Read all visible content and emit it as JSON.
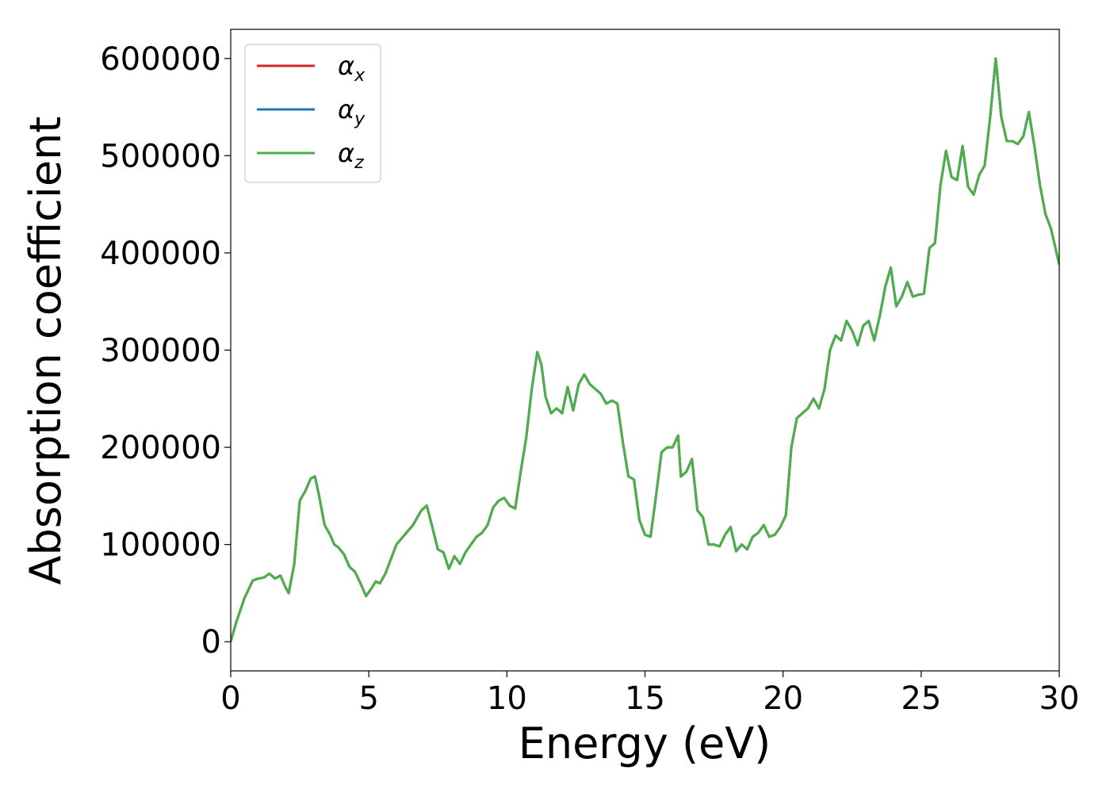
{
  "chart_data": {
    "type": "line",
    "title": "",
    "xlabel": "Energy (eV)",
    "ylabel": "Absorption coefficient",
    "xlim": [
      0,
      30
    ],
    "ylim": [
      -30000,
      630000
    ],
    "xticks": [
      0,
      5,
      10,
      15,
      20,
      25,
      30
    ],
    "xtick_labels": [
      "0",
      "5",
      "10",
      "15",
      "20",
      "25",
      "30"
    ],
    "yticks": [
      0,
      100000,
      200000,
      300000,
      400000,
      500000,
      600000
    ],
    "ytick_labels": [
      "0",
      "100000",
      "200000",
      "300000",
      "400000",
      "500000",
      "600000"
    ],
    "grid": false,
    "legend_position": "top-left",
    "legend": [
      {
        "symbol": "α",
        "sub": "x",
        "color": "#d62728"
      },
      {
        "symbol": "α",
        "sub": "y",
        "color": "#1f77b4"
      },
      {
        "symbol": "α",
        "sub": "z",
        "color": "#4daf4a"
      }
    ],
    "x": [
      0,
      0.2,
      0.5,
      0.8,
      1.0,
      1.2,
      1.4,
      1.6,
      1.8,
      2.0,
      2.1,
      2.3,
      2.5,
      2.7,
      2.9,
      3.05,
      3.2,
      3.4,
      3.6,
      3.75,
      3.9,
      4.1,
      4.3,
      4.5,
      4.7,
      4.9,
      5.1,
      5.25,
      5.4,
      5.6,
      5.8,
      6.0,
      6.3,
      6.6,
      6.9,
      7.1,
      7.3,
      7.5,
      7.7,
      7.9,
      8.1,
      8.3,
      8.5,
      8.7,
      8.9,
      9.1,
      9.3,
      9.5,
      9.7,
      9.9,
      10.1,
      10.3,
      10.5,
      10.7,
      10.9,
      11.1,
      11.25,
      11.4,
      11.6,
      11.8,
      12.0,
      12.2,
      12.4,
      12.6,
      12.8,
      13.0,
      13.2,
      13.4,
      13.6,
      13.8,
      14.0,
      14.2,
      14.4,
      14.6,
      14.8,
      15.0,
      15.2,
      15.4,
      15.6,
      15.8,
      16.0,
      16.2,
      16.3,
      16.5,
      16.7,
      16.9,
      17.1,
      17.3,
      17.5,
      17.7,
      17.9,
      18.1,
      18.3,
      18.5,
      18.7,
      18.9,
      19.1,
      19.3,
      19.5,
      19.7,
      19.9,
      20.1,
      20.3,
      20.5,
      20.7,
      20.9,
      21.1,
      21.3,
      21.5,
      21.7,
      21.9,
      22.1,
      22.3,
      22.5,
      22.7,
      22.9,
      23.1,
      23.3,
      23.5,
      23.7,
      23.9,
      24.1,
      24.3,
      24.5,
      24.7,
      24.9,
      25.1,
      25.3,
      25.5,
      25.7,
      25.9,
      26.1,
      26.3,
      26.5,
      26.7,
      26.9,
      27.1,
      27.3,
      27.5,
      27.7,
      27.9,
      28.1,
      28.3,
      28.5,
      28.7,
      28.9,
      29.1,
      29.3,
      29.5,
      29.7,
      30.0
    ],
    "series": [
      {
        "name": "α_x",
        "color": "#d62728",
        "values": [
          0,
          20000,
          45000,
          63000,
          65000,
          66000,
          70000,
          65000,
          68000,
          55000,
          50000,
          80000,
          145000,
          155000,
          168000,
          170000,
          150000,
          120000,
          110000,
          100000,
          97000,
          90000,
          77000,
          72000,
          60000,
          47000,
          55000,
          62000,
          60000,
          70000,
          85000,
          100000,
          110000,
          120000,
          135000,
          140000,
          118000,
          95000,
          92000,
          75000,
          88000,
          80000,
          92000,
          100000,
          108000,
          112000,
          120000,
          138000,
          145000,
          148000,
          140000,
          137000,
          175000,
          210000,
          260000,
          298000,
          285000,
          252000,
          235000,
          240000,
          235000,
          262000,
          238000,
          265000,
          275000,
          265000,
          260000,
          255000,
          245000,
          248000,
          245000,
          205000,
          170000,
          167000,
          125000,
          110000,
          108000,
          150000,
          195000,
          200000,
          200000,
          212000,
          170000,
          175000,
          188000,
          135000,
          128000,
          100000,
          100000,
          98000,
          110000,
          118000,
          93000,
          100000,
          95000,
          108000,
          112000,
          120000,
          108000,
          110000,
          118000,
          130000,
          200000,
          230000,
          235000,
          240000,
          250000,
          240000,
          260000,
          300000,
          315000,
          310000,
          330000,
          320000,
          305000,
          325000,
          330000,
          310000,
          335000,
          365000,
          385000,
          345000,
          355000,
          370000,
          355000,
          357000,
          358000,
          405000,
          410000,
          470000,
          505000,
          478000,
          475000,
          510000,
          468000,
          460000,
          480000,
          490000,
          540000,
          600000,
          540000,
          515000,
          515000,
          512000,
          520000,
          545000,
          510000,
          470000,
          440000,
          425000,
          388000
        ]
      },
      {
        "name": "α_y",
        "color": "#1f77b4",
        "values": [
          0,
          20000,
          45000,
          63000,
          65000,
          66000,
          70000,
          65000,
          68000,
          55000,
          50000,
          80000,
          145000,
          155000,
          168000,
          170000,
          150000,
          120000,
          110000,
          100000,
          97000,
          90000,
          77000,
          72000,
          60000,
          47000,
          55000,
          62000,
          60000,
          70000,
          85000,
          100000,
          110000,
          120000,
          135000,
          140000,
          118000,
          95000,
          92000,
          75000,
          88000,
          80000,
          92000,
          100000,
          108000,
          112000,
          120000,
          138000,
          145000,
          148000,
          140000,
          137000,
          175000,
          210000,
          260000,
          298000,
          285000,
          252000,
          235000,
          240000,
          235000,
          262000,
          238000,
          265000,
          275000,
          265000,
          260000,
          255000,
          245000,
          248000,
          245000,
          205000,
          170000,
          167000,
          125000,
          110000,
          108000,
          150000,
          195000,
          200000,
          200000,
          212000,
          170000,
          175000,
          188000,
          135000,
          128000,
          100000,
          100000,
          98000,
          110000,
          118000,
          93000,
          100000,
          95000,
          108000,
          112000,
          120000,
          108000,
          110000,
          118000,
          130000,
          200000,
          230000,
          235000,
          240000,
          250000,
          240000,
          260000,
          300000,
          315000,
          310000,
          330000,
          320000,
          305000,
          325000,
          330000,
          310000,
          335000,
          365000,
          385000,
          345000,
          355000,
          370000,
          355000,
          357000,
          358000,
          405000,
          410000,
          470000,
          505000,
          478000,
          475000,
          510000,
          468000,
          460000,
          480000,
          490000,
          540000,
          600000,
          540000,
          515000,
          515000,
          512000,
          520000,
          545000,
          510000,
          470000,
          440000,
          425000,
          388000
        ]
      },
      {
        "name": "α_z",
        "color": "#4daf4a",
        "values": [
          0,
          20000,
          45000,
          63000,
          65000,
          66000,
          70000,
          65000,
          68000,
          55000,
          50000,
          80000,
          145000,
          155000,
          168000,
          170000,
          150000,
          120000,
          110000,
          100000,
          97000,
          90000,
          77000,
          72000,
          60000,
          47000,
          55000,
          62000,
          60000,
          70000,
          85000,
          100000,
          110000,
          120000,
          135000,
          140000,
          118000,
          95000,
          92000,
          75000,
          88000,
          80000,
          92000,
          100000,
          108000,
          112000,
          120000,
          138000,
          145000,
          148000,
          140000,
          137000,
          175000,
          210000,
          260000,
          298000,
          285000,
          252000,
          235000,
          240000,
          235000,
          262000,
          238000,
          265000,
          275000,
          265000,
          260000,
          255000,
          245000,
          248000,
          245000,
          205000,
          170000,
          167000,
          125000,
          110000,
          108000,
          150000,
          195000,
          200000,
          200000,
          212000,
          170000,
          175000,
          188000,
          135000,
          128000,
          100000,
          100000,
          98000,
          110000,
          118000,
          93000,
          100000,
          95000,
          108000,
          112000,
          120000,
          108000,
          110000,
          118000,
          130000,
          200000,
          230000,
          235000,
          240000,
          250000,
          240000,
          260000,
          300000,
          315000,
          310000,
          330000,
          320000,
          305000,
          325000,
          330000,
          310000,
          335000,
          365000,
          385000,
          345000,
          355000,
          370000,
          355000,
          357000,
          358000,
          405000,
          410000,
          470000,
          505000,
          478000,
          475000,
          510000,
          468000,
          460000,
          480000,
          490000,
          540000,
          600000,
          540000,
          515000,
          515000,
          512000,
          520000,
          545000,
          510000,
          470000,
          440000,
          425000,
          388000
        ]
      }
    ]
  }
}
